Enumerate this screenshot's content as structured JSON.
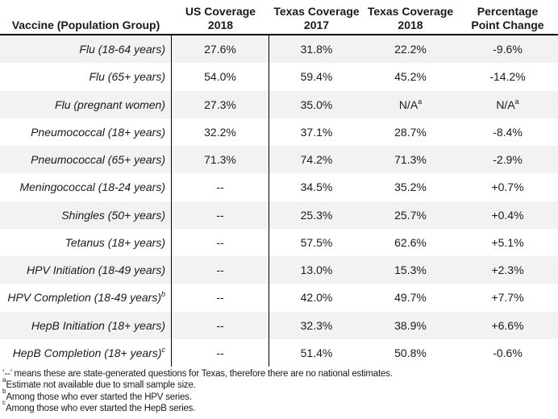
{
  "table": {
    "header": {
      "col1": "Vaccine (Population Group)",
      "col2_line1": "US Coverage",
      "col2_line2": "2018",
      "col3_line1": "Texas Coverage",
      "col3_line2": "2017",
      "col4_line1": "Texas Coverage",
      "col4_line2": "2018",
      "col5_line1": "Percentage",
      "col5_line2": "Point Change"
    },
    "rows": [
      {
        "label": "Flu (18-64 years)",
        "label_sup": "",
        "us_2018": "27.6%",
        "tx_2017": "31.8%",
        "tx_2018": "22.2%",
        "tx_2018_sup": "",
        "change": "-9.6%",
        "change_sup": ""
      },
      {
        "label": "Flu (65+ years)",
        "label_sup": "",
        "us_2018": "54.0%",
        "tx_2017": "59.4%",
        "tx_2018": "45.2%",
        "tx_2018_sup": "",
        "change": "-14.2%",
        "change_sup": ""
      },
      {
        "label": "Flu (pregnant women)",
        "label_sup": "",
        "us_2018": "27.3%",
        "tx_2017": "35.0%",
        "tx_2018": "N/A",
        "tx_2018_sup": "a",
        "change": "N/A",
        "change_sup": "a"
      },
      {
        "label": "Pneumococcal (18+ years)",
        "label_sup": "",
        "us_2018": "32.2%",
        "tx_2017": "37.1%",
        "tx_2018": "28.7%",
        "tx_2018_sup": "",
        "change": "-8.4%",
        "change_sup": ""
      },
      {
        "label": "Pneumococcal (65+ years)",
        "label_sup": "",
        "us_2018": "71.3%",
        "tx_2017": "74.2%",
        "tx_2018": "71.3%",
        "tx_2018_sup": "",
        "change": "-2.9%",
        "change_sup": ""
      },
      {
        "label": "Meningococcal (18-24 years)",
        "label_sup": "",
        "us_2018": "--",
        "tx_2017": "34.5%",
        "tx_2018": "35.2%",
        "tx_2018_sup": "",
        "change": "+0.7%",
        "change_sup": ""
      },
      {
        "label": "Shingles (50+ years)",
        "label_sup": "",
        "us_2018": "--",
        "tx_2017": "25.3%",
        "tx_2018": "25.7%",
        "tx_2018_sup": "",
        "change": "+0.4%",
        "change_sup": ""
      },
      {
        "label": "Tetanus (18+ years)",
        "label_sup": "",
        "us_2018": "--",
        "tx_2017": "57.5%",
        "tx_2018": "62.6%",
        "tx_2018_sup": "",
        "change": "+5.1%",
        "change_sup": ""
      },
      {
        "label": "HPV Initiation (18-49 years)",
        "label_sup": "",
        "us_2018": "--",
        "tx_2017": "13.0%",
        "tx_2018": "15.3%",
        "tx_2018_sup": "",
        "change": "+2.3%",
        "change_sup": ""
      },
      {
        "label": "HPV Completion (18-49 years)",
        "label_sup": "b",
        "us_2018": "--",
        "tx_2017": "42.0%",
        "tx_2018": "49.7%",
        "tx_2018_sup": "",
        "change": "+7.7%",
        "change_sup": ""
      },
      {
        "label": "HepB Initiation (18+ years)",
        "label_sup": "",
        "us_2018": "--",
        "tx_2017": "32.3%",
        "tx_2018": "38.9%",
        "tx_2018_sup": "",
        "change": "+6.6%",
        "change_sup": ""
      },
      {
        "label": "HepB Completion (18+ years)",
        "label_sup": "c",
        "us_2018": "--",
        "tx_2017": "51.4%",
        "tx_2018": "50.8%",
        "tx_2018_sup": "",
        "change": "-0.6%",
        "change_sup": ""
      }
    ]
  },
  "footnotes": [
    {
      "sup": "",
      "text": "‘--’ means these are state-generated questions for Texas, therefore there are no national estimates."
    },
    {
      "sup": "a",
      "text": "Estimate not available due to small sample size."
    },
    {
      "sup": "b",
      "text": "Among those who ever started the HPV series."
    },
    {
      "sup": "c",
      "text": "Among those who ever started the HepB series."
    }
  ],
  "colors": {
    "stripe": "#f2f2f2",
    "border": "#000000",
    "text": "#1a1a1a",
    "background": "#ffffff"
  }
}
